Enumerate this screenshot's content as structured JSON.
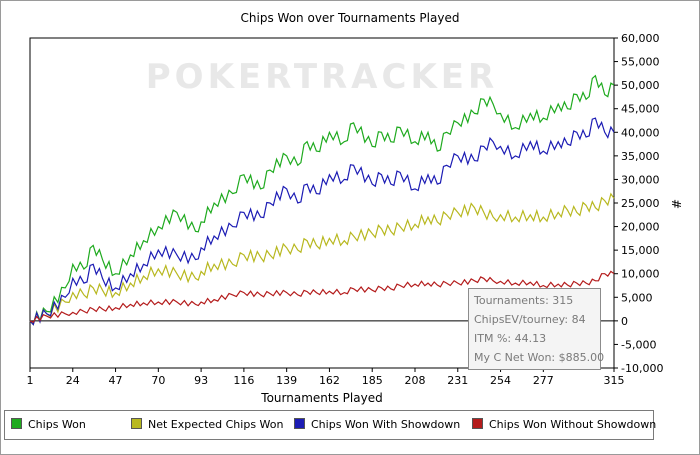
{
  "chart_data": {
    "type": "line",
    "title": "Chips Won over Tournaments Played",
    "xlabel": "Tournaments Played",
    "ylabel": "#",
    "watermark": "POKERTRACKER",
    "xlim": [
      1,
      315
    ],
    "ylim": [
      -10000,
      60000
    ],
    "x_ticks": [
      1,
      24,
      47,
      70,
      93,
      116,
      139,
      162,
      185,
      208,
      231,
      254,
      277,
      315
    ],
    "y_ticks": [
      -10000,
      -5000,
      0,
      5000,
      10000,
      15000,
      20000,
      25000,
      30000,
      35000,
      40000,
      45000,
      50000,
      55000,
      60000
    ],
    "y_tick_labels": [
      "-10,000",
      "-5,000",
      "0",
      "5,000",
      "10,000",
      "15,000",
      "20,000",
      "25,000",
      "30,000",
      "35,000",
      "40,000",
      "45,000",
      "50,000",
      "55,000",
      "60,000"
    ],
    "grid": false,
    "legend_position": "bottom",
    "series": [
      {
        "name": "Chips Won",
        "color": "#1faa1f",
        "x": [
          1,
          10,
          20,
          24,
          30,
          35,
          40,
          47,
          55,
          62,
          70,
          80,
          90,
          93,
          100,
          110,
          116,
          125,
          130,
          139,
          145,
          150,
          155,
          162,
          170,
          175,
          185,
          190,
          195,
          200,
          208,
          215,
          220,
          225,
          231,
          240,
          245,
          250,
          254,
          262,
          270,
          277,
          285,
          290,
          295,
          300,
          305,
          310,
          315
        ],
        "y": [
          0,
          2000,
          7000,
          12000,
          11000,
          16000,
          13000,
          10000,
          14000,
          17000,
          20000,
          23000,
          19000,
          21000,
          25000,
          27000,
          31000,
          28000,
          32000,
          35000,
          33000,
          38000,
          36000,
          40000,
          38000,
          42000,
          37000,
          40000,
          38000,
          41000,
          38000,
          40000,
          36000,
          40000,
          42000,
          44000,
          47000,
          46000,
          44000,
          41000,
          44000,
          43000,
          46000,
          45000,
          48000,
          47000,
          52000,
          48000,
          50000
        ]
      },
      {
        "name": "Net Expected Chips Won",
        "color": "#b8b820",
        "x": [
          1,
          10,
          20,
          24,
          30,
          35,
          40,
          47,
          55,
          62,
          70,
          80,
          90,
          93,
          100,
          110,
          116,
          125,
          130,
          139,
          145,
          150,
          155,
          162,
          170,
          175,
          185,
          190,
          195,
          200,
          208,
          215,
          220,
          225,
          231,
          240,
          245,
          250,
          254,
          262,
          270,
          277,
          285,
          290,
          295,
          300,
          305,
          310,
          315
        ],
        "y": [
          0,
          1500,
          4000,
          6000,
          5500,
          7000,
          6500,
          6000,
          8000,
          9500,
          11000,
          10000,
          9000,
          10500,
          12000,
          12000,
          14000,
          13500,
          14000,
          15500,
          15000,
          17000,
          16000,
          17500,
          17000,
          18000,
          18500,
          19500,
          19000,
          20000,
          20500,
          22000,
          21000,
          22500,
          23000,
          24000,
          23000,
          22000,
          22500,
          22000,
          22500,
          22000,
          23000,
          23500,
          23000,
          24500,
          24000,
          25500,
          26000
        ]
      },
      {
        "name": "Chips Won With Showdown",
        "color": "#1c1cb4",
        "x": [
          1,
          10,
          20,
          24,
          30,
          35,
          40,
          47,
          55,
          62,
          70,
          80,
          90,
          93,
          100,
          110,
          116,
          125,
          130,
          139,
          145,
          150,
          155,
          162,
          170,
          175,
          185,
          190,
          195,
          200,
          208,
          215,
          220,
          225,
          231,
          240,
          245,
          250,
          254,
          262,
          270,
          277,
          285,
          290,
          295,
          300,
          305,
          310,
          315
        ],
        "y": [
          0,
          1500,
          5000,
          9000,
          8000,
          12000,
          9000,
          7000,
          10000,
          12000,
          15000,
          14000,
          13000,
          15500,
          18000,
          20000,
          23000,
          22000,
          25000,
          28000,
          25000,
          29000,
          27000,
          31000,
          30000,
          33000,
          29000,
          31000,
          29000,
          31500,
          28000,
          31000,
          29000,
          33000,
          35000,
          34000,
          37000,
          38000,
          37000,
          35000,
          38000,
          36000,
          38000,
          37500,
          40000,
          39000,
          43000,
          40000,
          40000
        ]
      },
      {
        "name": "Chips Won Without Showdown",
        "color": "#b41c1c",
        "x": [
          1,
          10,
          20,
          24,
          30,
          35,
          40,
          47,
          55,
          62,
          70,
          80,
          90,
          93,
          100,
          110,
          116,
          125,
          130,
          139,
          145,
          150,
          155,
          162,
          170,
          175,
          185,
          190,
          195,
          200,
          208,
          215,
          220,
          225,
          231,
          240,
          245,
          250,
          254,
          262,
          270,
          277,
          285,
          290,
          295,
          300,
          305,
          310,
          315
        ],
        "y": [
          0,
          1000,
          1500,
          1800,
          2000,
          2500,
          2500,
          2800,
          3500,
          3800,
          4000,
          4000,
          3500,
          4000,
          4500,
          5500,
          6000,
          5500,
          5800,
          6000,
          5500,
          6200,
          6000,
          6300,
          6000,
          6800,
          6500,
          7000,
          6800,
          7500,
          7800,
          8000,
          7600,
          8000,
          8000,
          8500,
          9000,
          8500,
          8400,
          8000,
          8200,
          7500,
          7800,
          7600,
          8000,
          8000,
          8500,
          10000,
          10000
        ]
      }
    ],
    "tooltip": {
      "lines": [
        "Tournaments: 315",
        "ChipsEV/tourney: 84",
        "ITM %: 44.13",
        "My C Net Won: $885.00"
      ]
    }
  }
}
